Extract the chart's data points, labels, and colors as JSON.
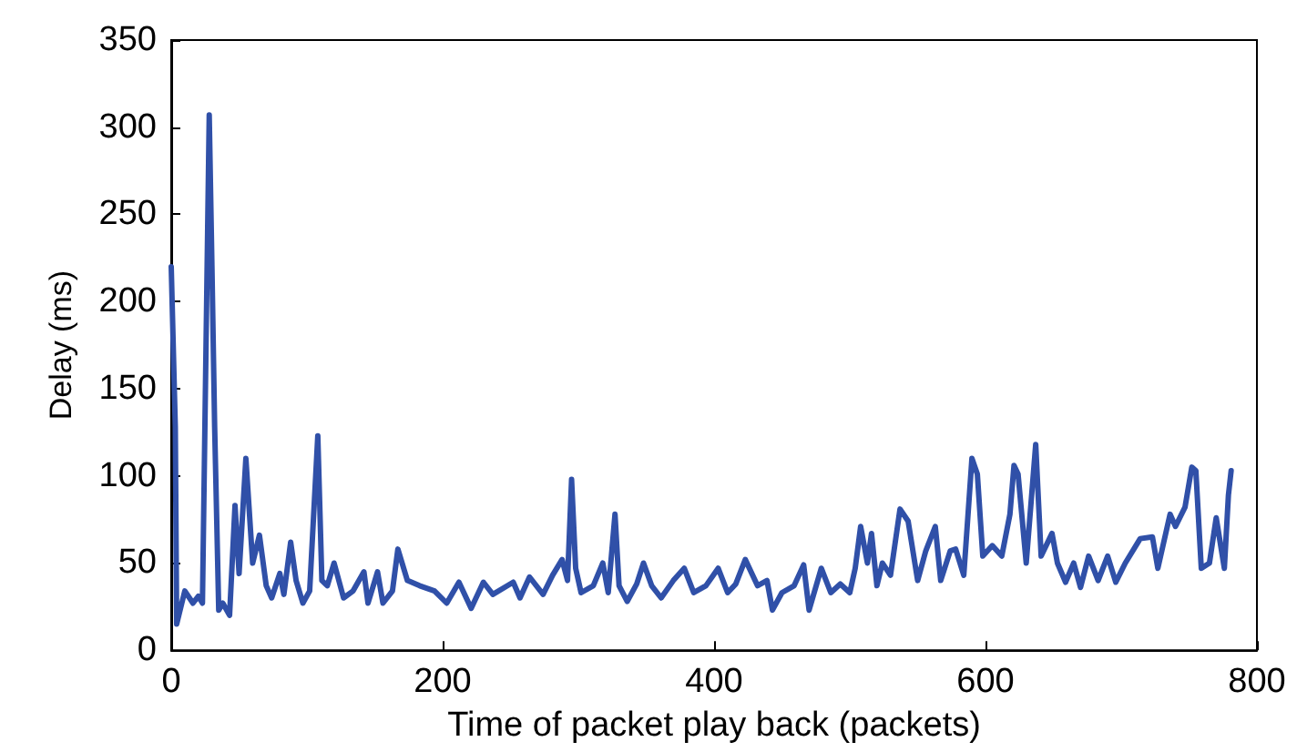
{
  "chart_data": {
    "type": "line",
    "xlabel": "Time of packet play back (packets)",
    "ylabel": "Delay (ms)",
    "xlim": [
      0,
      800
    ],
    "xticks": [
      0,
      200,
      400,
      600,
      800
    ],
    "ylim": [
      0,
      350
    ],
    "yticks": [
      0,
      50,
      100,
      150,
      200,
      250,
      300,
      350
    ],
    "grid": false,
    "marker": "none",
    "line_style": "solid",
    "series": [
      {
        "color": "#3050a8",
        "x": [
          0,
          3,
          4,
          10,
          16,
          20,
          23,
          28,
          30,
          32,
          35,
          38,
          43,
          47,
          50,
          55,
          60,
          65,
          70,
          74,
          80,
          83,
          88,
          92,
          97,
          102,
          108,
          111,
          115,
          120,
          127,
          134,
          142,
          145,
          152,
          156,
          163,
          167,
          174,
          183,
          194,
          203,
          212,
          221,
          230,
          237,
          252,
          257,
          264,
          274,
          281,
          288,
          292,
          295,
          298,
          302,
          311,
          318,
          322,
          327,
          330,
          336,
          343,
          348,
          354,
          361,
          370,
          378,
          385,
          394,
          403,
          410,
          416,
          423,
          432,
          439,
          443,
          450,
          459,
          466,
          470,
          479,
          486,
          493,
          500,
          504,
          508,
          513,
          516,
          520,
          524,
          530,
          537,
          543,
          550,
          556,
          563,
          567,
          574,
          578,
          584,
          590,
          594,
          598,
          605,
          612,
          618,
          621,
          624,
          630,
          637,
          641,
          649,
          653,
          659,
          665,
          670,
          676,
          683,
          690,
          696,
          703,
          714,
          723,
          727,
          736,
          740,
          747,
          752,
          755,
          759,
          765,
          770,
          776,
          779,
          781
        ],
        "values": [
          220,
          128,
          15,
          34,
          27,
          31,
          27,
          307,
          220,
          128,
          23,
          27,
          20,
          83,
          44,
          110,
          50,
          66,
          37,
          30,
          44,
          32,
          62,
          40,
          27,
          34,
          123,
          40,
          37,
          50,
          30,
          34,
          45,
          27,
          45,
          27,
          34,
          58,
          40,
          37,
          34,
          27,
          39,
          24,
          39,
          32,
          39,
          30,
          42,
          32,
          43,
          52,
          40,
          98,
          47,
          33,
          37,
          50,
          33,
          78,
          37,
          28,
          38,
          50,
          37,
          30,
          40,
          47,
          33,
          37,
          47,
          33,
          38,
          52,
          37,
          40,
          23,
          33,
          37,
          49,
          23,
          47,
          33,
          38,
          33,
          47,
          71,
          50,
          67,
          37,
          50,
          43,
          81,
          74,
          40,
          57,
          71,
          40,
          57,
          58,
          43,
          110,
          101,
          54,
          60,
          54,
          78,
          106,
          101,
          50,
          118,
          54,
          67,
          50,
          39,
          50,
          36,
          54,
          40,
          54,
          39,
          50,
          64,
          65,
          47,
          78,
          71,
          82,
          105,
          103,
          47,
          50,
          76,
          47,
          89,
          103
        ]
      }
    ]
  }
}
